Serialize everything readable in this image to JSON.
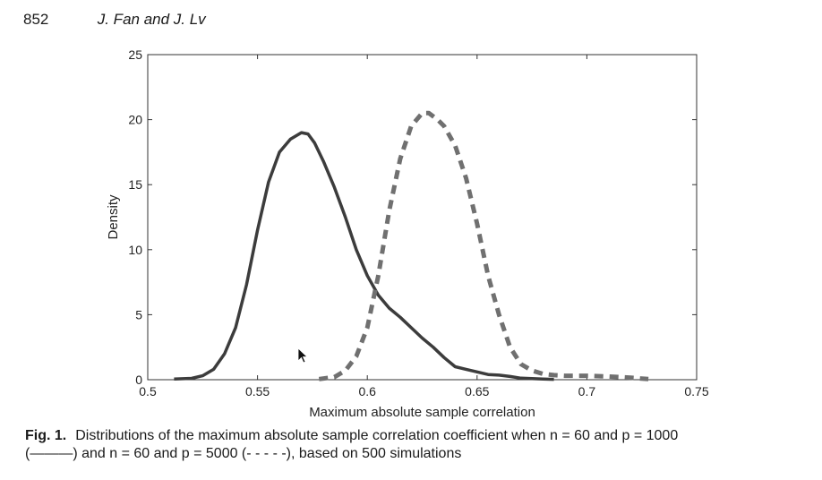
{
  "header": {
    "page_number": "852",
    "authors": "J. Fan and J. Lv"
  },
  "chart_data": {
    "type": "line",
    "xlabel": "Maximum absolute sample correlation",
    "ylabel": "Density",
    "xlim": [
      0.5,
      0.75
    ],
    "ylim": [
      0,
      25
    ],
    "x_ticks": [
      "0.5",
      "0.55",
      "0.6",
      "0.65",
      "0.7",
      "0.75"
    ],
    "y_ticks": [
      "0",
      "5",
      "10",
      "15",
      "20",
      "25"
    ],
    "grid": false,
    "series": [
      {
        "style": "solid",
        "color": "#3c3c3c",
        "x": [
          0.512,
          0.52,
          0.525,
          0.53,
          0.535,
          0.54,
          0.545,
          0.55,
          0.555,
          0.56,
          0.565,
          0.57,
          0.573,
          0.576,
          0.58,
          0.585,
          0.59,
          0.595,
          0.6,
          0.605,
          0.61,
          0.615,
          0.62,
          0.625,
          0.63,
          0.635,
          0.64,
          0.645,
          0.65,
          0.655,
          0.66,
          0.665,
          0.67,
          0.675,
          0.68,
          0.685
        ],
        "y": [
          0.05,
          0.1,
          0.3,
          0.8,
          2.0,
          4.0,
          7.3,
          11.5,
          15.2,
          17.5,
          18.5,
          19.0,
          18.9,
          18.2,
          16.8,
          14.8,
          12.5,
          10.0,
          8.0,
          6.5,
          5.5,
          4.8,
          4.0,
          3.2,
          2.5,
          1.7,
          1.0,
          0.8,
          0.6,
          0.4,
          0.35,
          0.25,
          0.12,
          0.08,
          0.05,
          0.03
        ]
      },
      {
        "style": "dashed",
        "color": "#707070",
        "x": [
          0.578,
          0.585,
          0.59,
          0.595,
          0.6,
          0.605,
          0.61,
          0.615,
          0.62,
          0.625,
          0.628,
          0.632,
          0.635,
          0.64,
          0.645,
          0.65,
          0.655,
          0.66,
          0.665,
          0.67,
          0.675,
          0.68,
          0.685,
          0.69,
          0.7,
          0.71,
          0.72,
          0.728
        ],
        "y": [
          0.05,
          0.2,
          0.7,
          1.8,
          4.0,
          8.0,
          13.0,
          17.0,
          19.5,
          20.5,
          20.5,
          20.0,
          19.5,
          18.0,
          15.5,
          12.0,
          8.0,
          5.0,
          2.5,
          1.2,
          0.7,
          0.45,
          0.35,
          0.3,
          0.3,
          0.25,
          0.15,
          0.05
        ]
      }
    ]
  },
  "caption": {
    "label": "Fig. 1.",
    "line1": "Distributions of the maximum absolute sample correlation coefficient when n = 60 and p = 1000",
    "line2": "(———) and n = 60 and p = 5000 (- - - - -), based on 500 simulations"
  }
}
